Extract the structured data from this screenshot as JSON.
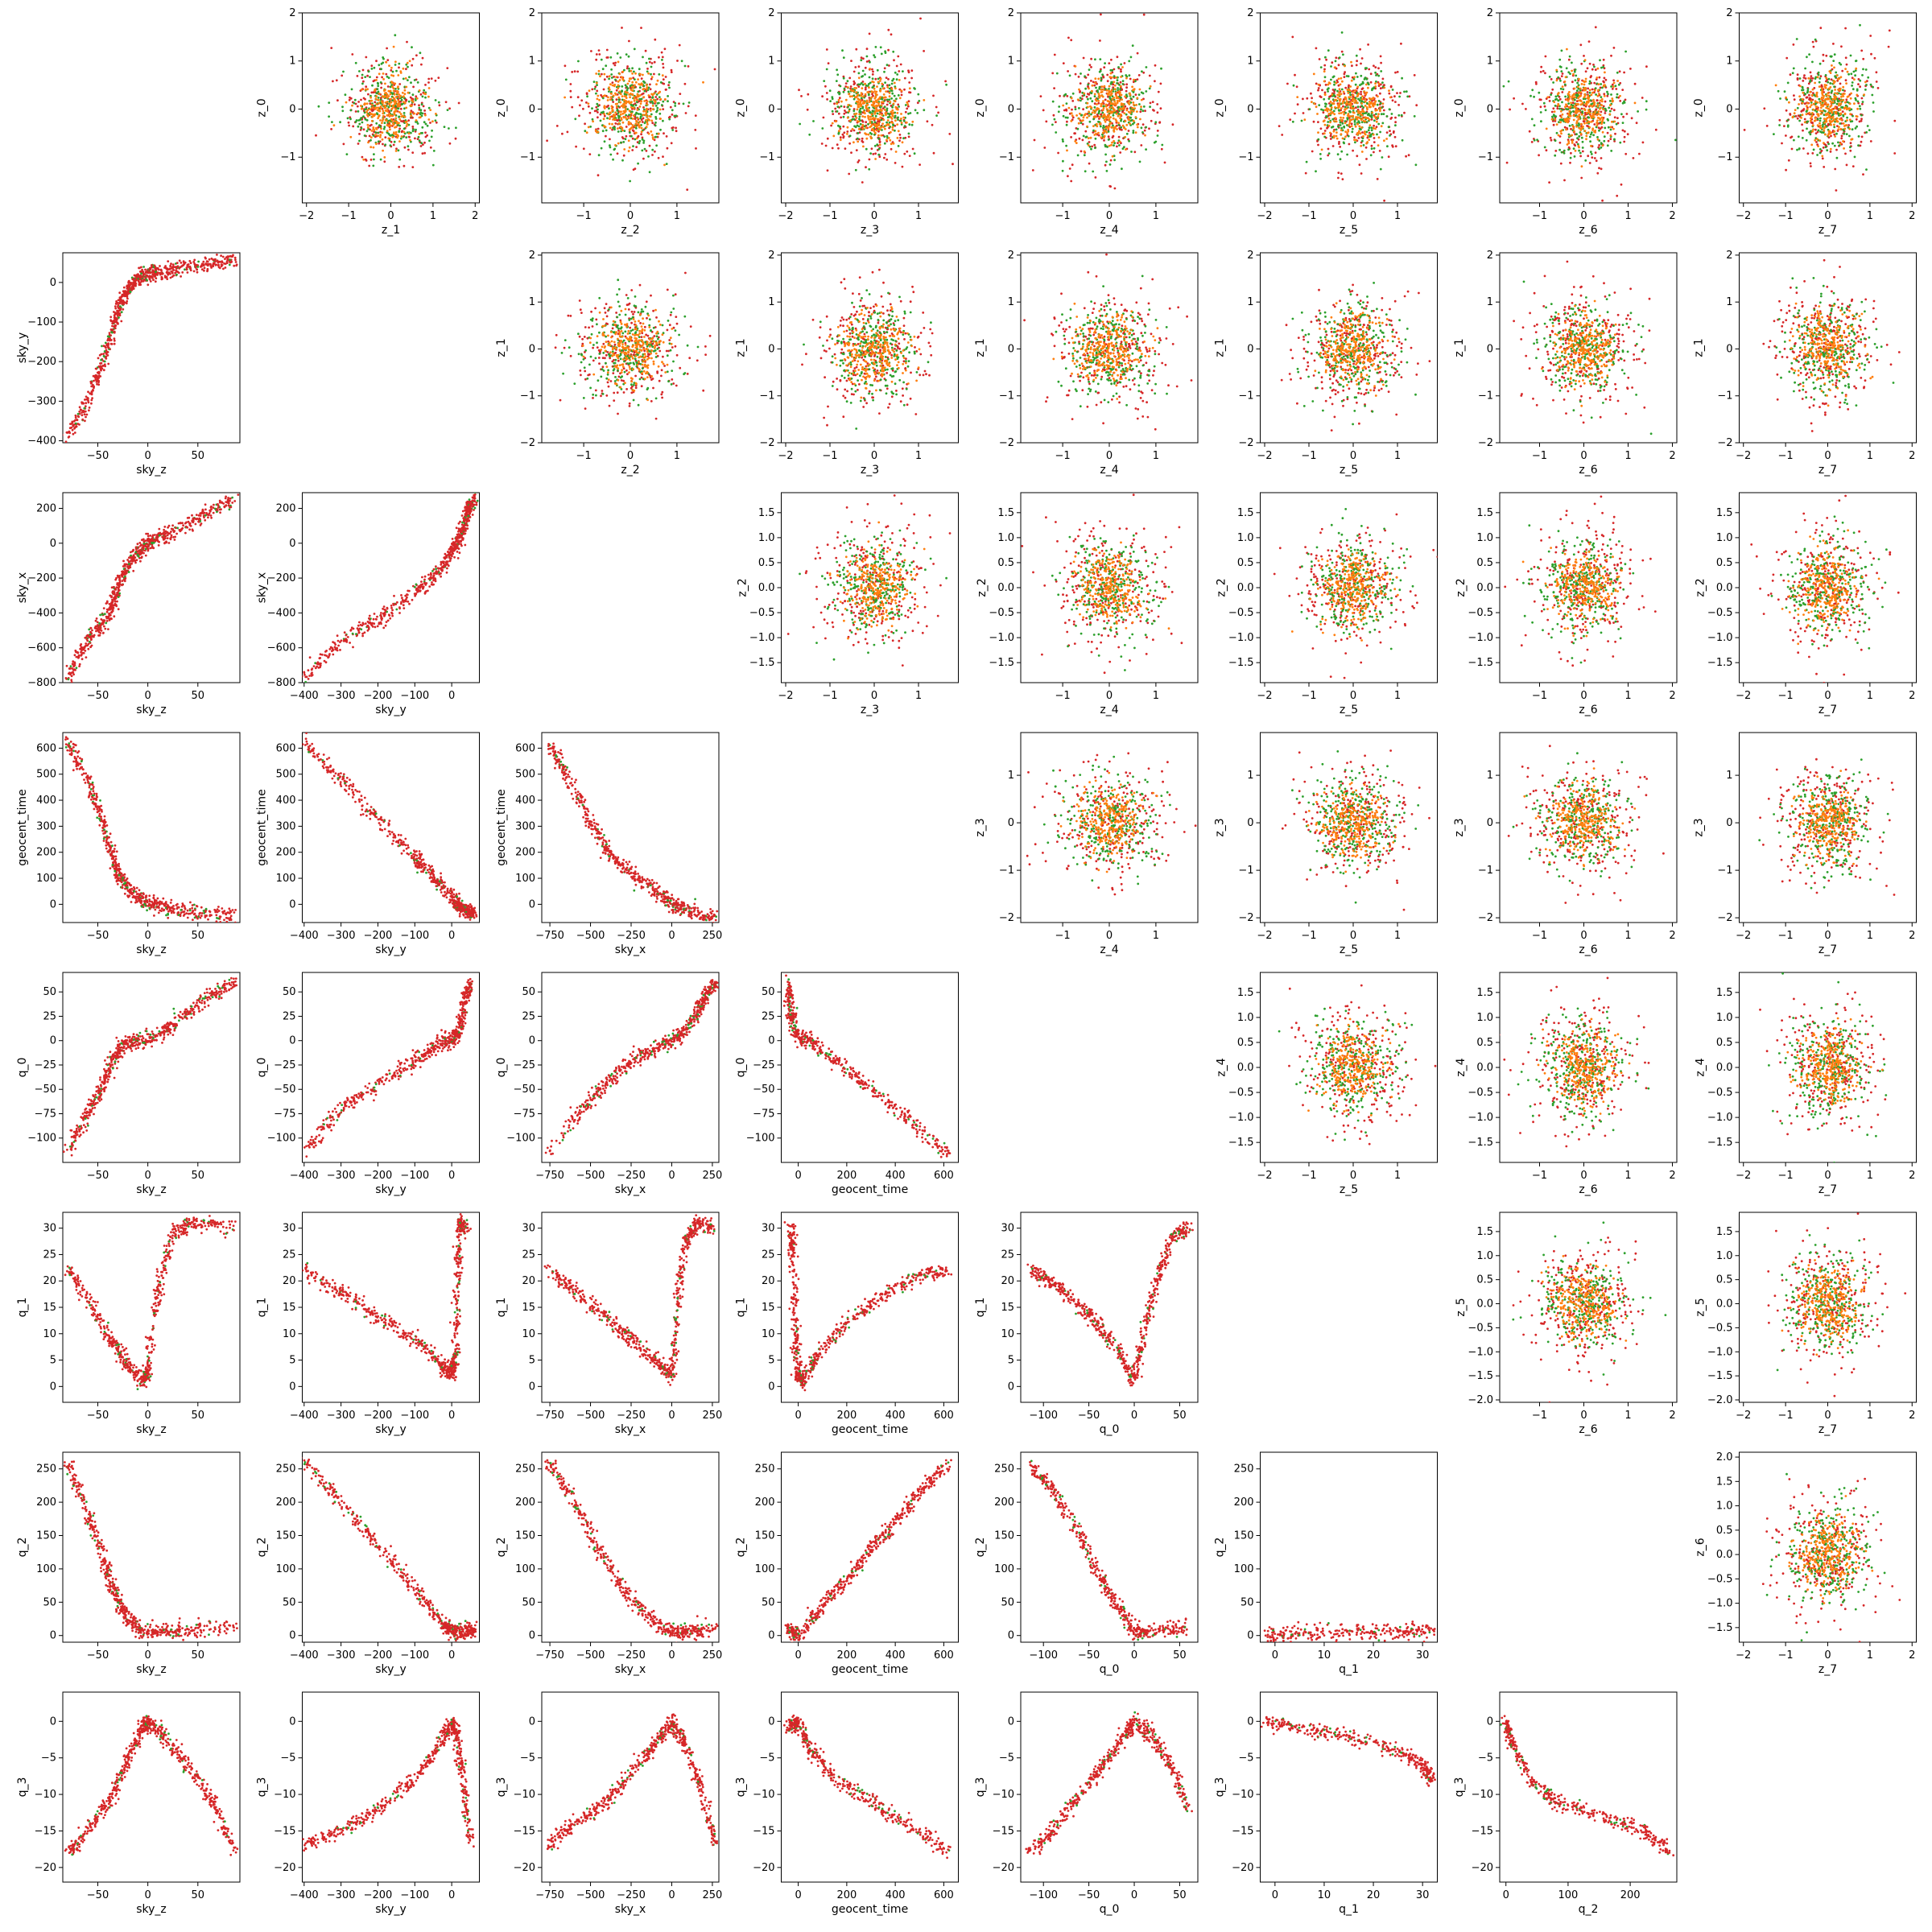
{
  "figure": {
    "type": "pair-corner-plot"
  },
  "colors": {
    "primary": "#d62728",
    "secondary": "#2ca02c",
    "tertiary": "#ff7f0e",
    "frame": "#000000",
    "background": "#ffffff"
  },
  "chart_data": {
    "type": "scatter",
    "grid": false,
    "legend": "none",
    "lower_variables": [
      "sky_z",
      "sky_y",
      "sky_x",
      "geocent_time",
      "q_0",
      "q_1",
      "q_2",
      "q_3"
    ],
    "upper_variables": [
      "z_0",
      "z_1",
      "z_2",
      "z_3",
      "z_4",
      "z_5",
      "z_6",
      "z_7"
    ],
    "lower_ranges": {
      "sky_z": [
        -85,
        92
      ],
      "sky_y": [
        -405,
        75
      ],
      "sky_x": [
        -800,
        290
      ],
      "geocent_time": [
        -70,
        660
      ],
      "q_0": [
        -125,
        70
      ],
      "q_1": [
        -3,
        33
      ],
      "q_2": [
        -10,
        275
      ],
      "q_3": [
        -22,
        4
      ]
    },
    "lower_ticks": {
      "sky_z": [
        -50,
        0,
        50
      ],
      "sky_y": [
        -400,
        -300,
        -200,
        -100,
        0
      ],
      "sky_x": [
        -750,
        -500,
        -250,
        0,
        250
      ],
      "geocent_time": [
        0,
        200,
        400,
        600
      ],
      "q_0": [
        -100,
        -50,
        0,
        50
      ],
      "q_1": [
        0,
        10,
        20,
        30
      ],
      "q_2": [
        0,
        100,
        200
      ],
      "q_3": [
        -20,
        -15,
        -10,
        -5,
        0
      ]
    },
    "lower_y_ticks": {
      "sky_y": [
        -400,
        -300,
        -200,
        -100,
        0
      ],
      "sky_x": [
        -800,
        -600,
        -400,
        -200,
        0,
        200
      ],
      "geocent_time": [
        0,
        100,
        200,
        300,
        400,
        500,
        600
      ],
      "q_0": [
        -100,
        -75,
        -50,
        -25,
        0,
        25,
        50
      ],
      "q_1": [
        0,
        5,
        10,
        15,
        20,
        25,
        30
      ],
      "q_2": [
        0,
        50,
        100,
        150,
        200,
        250
      ],
      "q_3": [
        -20,
        -15,
        -10,
        -5,
        0
      ]
    },
    "upper_x_ticks": {
      "z_1": [
        -2,
        -1,
        0,
        1,
        2
      ],
      "z_2": [
        -1,
        0,
        1
      ],
      "z_3": [
        -2,
        -1,
        0,
        1
      ],
      "z_4": [
        -1,
        0,
        1
      ],
      "z_5": [
        -2,
        -1,
        0,
        1
      ],
      "z_6": [
        -1,
        0,
        1,
        2
      ],
      "z_7": [
        -2,
        -1,
        0,
        1,
        2
      ]
    },
    "upper_x_ranges": {
      "z_1": [
        -2.1,
        2.1
      ],
      "z_2": [
        -1.9,
        1.9
      ],
      "z_3": [
        -2.1,
        1.9
      ],
      "z_4": [
        -1.9,
        1.9
      ],
      "z_5": [
        -2.1,
        1.9
      ],
      "z_6": [
        -1.9,
        2.1
      ],
      "z_7": [
        -2.1,
        2.1
      ]
    },
    "upper_y_ticks": {
      "z_0": [
        -1,
        0,
        1,
        2
      ],
      "z_1": [
        -2,
        -1,
        0,
        1,
        2
      ],
      "z_2": [
        -1.5,
        -1.0,
        -0.5,
        0.0,
        0.5,
        1.0,
        1.5
      ],
      "z_3": [
        -2,
        -1,
        0,
        1
      ],
      "z_4": [
        -1.5,
        -1.0,
        -0.5,
        0.0,
        0.5,
        1.0,
        1.5
      ],
      "z_5": [
        -2.0,
        -1.5,
        -1.0,
        -0.5,
        0.0,
        0.5,
        1.0,
        1.5
      ],
      "z_6": [
        -1.5,
        -1.0,
        -0.5,
        0.0,
        0.5,
        1.0,
        1.5,
        2.0
      ]
    },
    "upper_y_ranges": {
      "z_0": [
        -1.95,
        2.0
      ],
      "z_1": [
        -2.0,
        2.05
      ],
      "z_2": [
        -1.9,
        1.9
      ],
      "z_3": [
        -2.1,
        1.9
      ],
      "z_4": [
        -1.9,
        1.9
      ],
      "z_5": [
        -2.05,
        1.9
      ],
      "z_6": [
        -1.8,
        2.1
      ]
    },
    "lower_curves": {
      "sky_y|sky_z": [
        [
          -80,
          -395
        ],
        [
          -60,
          -300
        ],
        [
          -45,
          -200
        ],
        [
          -35,
          -120
        ],
        [
          -28,
          -60
        ],
        [
          -20,
          -20
        ],
        [
          -10,
          10
        ],
        [
          0,
          22
        ],
        [
          10,
          25
        ],
        [
          30,
          35
        ],
        [
          60,
          48
        ],
        [
          88,
          60
        ]
      ],
      "sky_x|sky_z": [
        [
          -80,
          -770
        ],
        [
          -60,
          -560
        ],
        [
          -45,
          -460
        ],
        [
          -35,
          -350
        ],
        [
          -28,
          -220
        ],
        [
          -15,
          -90
        ],
        [
          -5,
          -20
        ],
        [
          5,
          15
        ],
        [
          25,
          60
        ],
        [
          55,
          160
        ],
        [
          88,
          260
        ]
      ],
      "sky_x|sky_y": [
        [
          -400,
          -780
        ],
        [
          -300,
          -560
        ],
        [
          -200,
          -440
        ],
        [
          -100,
          -290
        ],
        [
          -40,
          -170
        ],
        [
          0,
          -50
        ],
        [
          20,
          20
        ],
        [
          35,
          120
        ],
        [
          45,
          200
        ],
        [
          60,
          260
        ]
      ],
      "geocent_time|sky_z": [
        [
          -80,
          620
        ],
        [
          -60,
          480
        ],
        [
          -45,
          320
        ],
        [
          -35,
          180
        ],
        [
          -28,
          100
        ],
        [
          -15,
          40
        ],
        [
          0,
          5
        ],
        [
          20,
          -15
        ],
        [
          50,
          -30
        ],
        [
          88,
          -45
        ]
      ],
      "geocent_time|sky_y": [
        [
          -400,
          625
        ],
        [
          -300,
          480
        ],
        [
          -200,
          330
        ],
        [
          -100,
          180
        ],
        [
          -50,
          110
        ],
        [
          0,
          30
        ],
        [
          20,
          -10
        ],
        [
          40,
          -25
        ],
        [
          60,
          -40
        ]
      ],
      "geocent_time|sky_x": [
        [
          -760,
          625
        ],
        [
          -650,
          500
        ],
        [
          -500,
          320
        ],
        [
          -400,
          200
        ],
        [
          -250,
          120
        ],
        [
          -100,
          50
        ],
        [
          0,
          5
        ],
        [
          100,
          -25
        ],
        [
          270,
          -55
        ]
      ],
      "q_0|sky_z": [
        [
          -80,
          -115
        ],
        [
          -60,
          -75
        ],
        [
          -45,
          -45
        ],
        [
          -35,
          -20
        ],
        [
          -25,
          -5
        ],
        [
          -10,
          0
        ],
        [
          10,
          5
        ],
        [
          30,
          20
        ],
        [
          60,
          45
        ],
        [
          88,
          60
        ]
      ],
      "q_0|sky_y": [
        [
          -400,
          -115
        ],
        [
          -300,
          -70
        ],
        [
          -200,
          -45
        ],
        [
          -100,
          -20
        ],
        [
          -40,
          -5
        ],
        [
          0,
          0
        ],
        [
          20,
          10
        ],
        [
          35,
          40
        ],
        [
          50,
          58
        ]
      ],
      "q_0|sky_x": [
        [
          -760,
          -115
        ],
        [
          -500,
          -60
        ],
        [
          -350,
          -35
        ],
        [
          -200,
          -15
        ],
        [
          -50,
          -5
        ],
        [
          50,
          5
        ],
        [
          150,
          25
        ],
        [
          200,
          45
        ],
        [
          270,
          60
        ]
      ],
      "q_0|geocent_time": [
        [
          -40,
          58
        ],
        [
          -30,
          30
        ],
        [
          -10,
          5
        ],
        [
          50,
          0
        ],
        [
          150,
          -20
        ],
        [
          300,
          -50
        ],
        [
          450,
          -80
        ],
        [
          620,
          -115
        ]
      ],
      "q_1|sky_z": [
        [
          -80,
          22
        ],
        [
          -55,
          15
        ],
        [
          -35,
          8
        ],
        [
          -20,
          4
        ],
        [
          -5,
          1
        ],
        [
          0,
          3
        ],
        [
          10,
          18
        ],
        [
          25,
          29
        ],
        [
          45,
          31
        ],
        [
          88,
          30
        ]
      ],
      "q_1|sky_y": [
        [
          -400,
          22
        ],
        [
          -300,
          18
        ],
        [
          -200,
          13
        ],
        [
          -100,
          9
        ],
        [
          -30,
          4
        ],
        [
          0,
          2
        ],
        [
          10,
          6
        ],
        [
          15,
          20
        ],
        [
          20,
          31
        ],
        [
          40,
          30
        ]
      ],
      "q_1|sky_x": [
        [
          -760,
          22
        ],
        [
          -600,
          18
        ],
        [
          -400,
          13
        ],
        [
          -250,
          9
        ],
        [
          -100,
          5
        ],
        [
          0,
          2
        ],
        [
          30,
          15
        ],
        [
          80,
          27
        ],
        [
          150,
          31
        ],
        [
          260,
          30
        ]
      ],
      "q_1|geocent_time": [
        [
          -30,
          31
        ],
        [
          -20,
          25
        ],
        [
          -10,
          10
        ],
        [
          0,
          2
        ],
        [
          20,
          1
        ],
        [
          80,
          6
        ],
        [
          200,
          12
        ],
        [
          350,
          17
        ],
        [
          500,
          21
        ],
        [
          620,
          22
        ]
      ],
      "q_1|q_0": [
        [
          -115,
          22
        ],
        [
          -90,
          20
        ],
        [
          -60,
          15
        ],
        [
          -40,
          12
        ],
        [
          -15,
          6
        ],
        [
          0,
          1
        ],
        [
          10,
          10
        ],
        [
          25,
          20
        ],
        [
          40,
          28
        ],
        [
          60,
          30
        ]
      ],
      "q_2|sky_z": [
        [
          -80,
          260
        ],
        [
          -60,
          180
        ],
        [
          -45,
          120
        ],
        [
          -35,
          70
        ],
        [
          -25,
          35
        ],
        [
          -10,
          10
        ],
        [
          10,
          5
        ],
        [
          40,
          8
        ],
        [
          88,
          12
        ]
      ],
      "q_2|sky_y": [
        [
          -400,
          260
        ],
        [
          -300,
          200
        ],
        [
          -200,
          135
        ],
        [
          -100,
          70
        ],
        [
          -30,
          20
        ],
        [
          0,
          5
        ],
        [
          30,
          5
        ],
        [
          60,
          10
        ]
      ],
      "q_2|sky_x": [
        [
          -760,
          260
        ],
        [
          -600,
          200
        ],
        [
          -450,
          130
        ],
        [
          -300,
          70
        ],
        [
          -150,
          30
        ],
        [
          0,
          5
        ],
        [
          100,
          5
        ],
        [
          270,
          12
        ]
      ],
      "q_2|geocent_time": [
        [
          -40,
          12
        ],
        [
          0,
          0
        ],
        [
          100,
          45
        ],
        [
          200,
          85
        ],
        [
          300,
          130
        ],
        [
          400,
          170
        ],
        [
          500,
          215
        ],
        [
          630,
          265
        ]
      ],
      "q_2|q_0": [
        [
          -115,
          255
        ],
        [
          -90,
          220
        ],
        [
          -60,
          150
        ],
        [
          -40,
          90
        ],
        [
          -20,
          50
        ],
        [
          0,
          5
        ],
        [
          20,
          5
        ],
        [
          60,
          12
        ]
      ],
      "q_2|q_1": [
        [
          -2,
          0
        ],
        [
          5,
          3
        ],
        [
          15,
          5
        ],
        [
          25,
          6
        ],
        [
          32,
          8
        ]
      ],
      "q_3|sky_z": [
        [
          -80,
          -18
        ],
        [
          -55,
          -14
        ],
        [
          -35,
          -10
        ],
        [
          -20,
          -5
        ],
        [
          -5,
          -1
        ],
        [
          0,
          0
        ],
        [
          15,
          -2
        ],
        [
          40,
          -6
        ],
        [
          65,
          -11
        ],
        [
          88,
          -18
        ]
      ],
      "q_3|sky_y": [
        [
          -400,
          -17
        ],
        [
          -300,
          -15
        ],
        [
          -200,
          -12
        ],
        [
          -100,
          -8
        ],
        [
          -30,
          -3
        ],
        [
          0,
          0
        ],
        [
          15,
          -2
        ],
        [
          30,
          -8
        ],
        [
          50,
          -17
        ]
      ],
      "q_3|sky_x": [
        [
          -760,
          -17
        ],
        [
          -600,
          -14
        ],
        [
          -400,
          -11
        ],
        [
          -250,
          -7
        ],
        [
          -100,
          -3
        ],
        [
          0,
          0
        ],
        [
          80,
          -3
        ],
        [
          180,
          -9
        ],
        [
          270,
          -17
        ]
      ],
      "q_3|geocent_time": [
        [
          -40,
          -1
        ],
        [
          0,
          0
        ],
        [
          50,
          -4
        ],
        [
          150,
          -8
        ],
        [
          300,
          -11
        ],
        [
          450,
          -14
        ],
        [
          620,
          -18
        ]
      ],
      "q_3|q_0": [
        [
          -115,
          -18
        ],
        [
          -90,
          -15
        ],
        [
          -60,
          -10
        ],
        [
          -35,
          -6
        ],
        [
          -10,
          -2
        ],
        [
          0,
          0
        ],
        [
          20,
          -2
        ],
        [
          40,
          -6
        ],
        [
          60,
          -12
        ]
      ],
      "q_3|q_1": [
        [
          -2,
          0
        ],
        [
          5,
          -1
        ],
        [
          15,
          -2
        ],
        [
          25,
          -4
        ],
        [
          30,
          -6
        ],
        [
          32,
          -8
        ]
      ],
      "q_3|q_2": [
        [
          0,
          0
        ],
        [
          10,
          -3
        ],
        [
          40,
          -8
        ],
        [
          80,
          -11
        ],
        [
          150,
          -13
        ],
        [
          220,
          -15
        ],
        [
          265,
          -18
        ]
      ]
    },
    "upper_scatter": {
      "distribution": "standard-normal",
      "points_per_series": 900,
      "series_colors": [
        "#d62728",
        "#2ca02c",
        "#ff7f0e"
      ]
    }
  }
}
